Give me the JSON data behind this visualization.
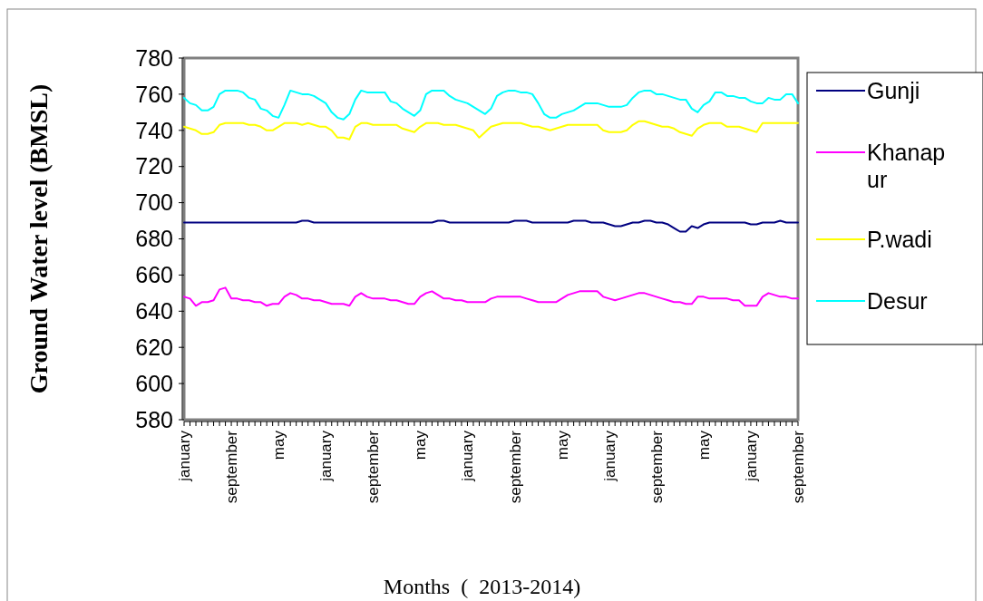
{
  "chart_data": {
    "type": "line",
    "xlabel": "Months  (  2013-2014)",
    "ylabel": "Ground Water level (BMSL)",
    "categories": [
      "january",
      null,
      null,
      null,
      null,
      null,
      null,
      null,
      "september",
      null,
      null,
      null,
      null,
      null,
      null,
      null,
      "may",
      null,
      null,
      null,
      null,
      null,
      null,
      null,
      "january",
      null,
      null,
      null,
      null,
      null,
      null,
      null,
      "september",
      null,
      null,
      null,
      null,
      null,
      null,
      null,
      "may",
      null,
      null,
      null,
      null,
      null,
      null,
      null,
      "january",
      null,
      null,
      null,
      null,
      null,
      null,
      null,
      "september",
      null,
      null,
      null,
      null,
      null,
      null,
      null,
      "may",
      null,
      null,
      null,
      null,
      null,
      null,
      null,
      "january",
      null,
      null,
      null,
      null,
      null,
      null,
      null,
      "september",
      null,
      null,
      null,
      null,
      null,
      null,
      null,
      "may",
      null,
      null,
      null,
      null,
      null,
      null,
      null,
      "january",
      null,
      null,
      null,
      null,
      null,
      null,
      null,
      "september"
    ],
    "series": [
      {
        "name": "Gunji",
        "color": "#000080",
        "values": [
          689,
          689,
          689,
          689,
          689,
          689,
          689,
          689,
          689,
          689,
          689,
          689,
          689,
          689,
          689,
          689,
          689,
          689,
          689,
          689,
          690,
          690,
          689,
          689,
          689,
          689,
          689,
          689,
          689,
          689,
          689,
          689,
          689,
          689,
          689,
          689,
          689,
          689,
          689,
          689,
          689,
          689,
          689,
          690,
          690,
          689,
          689,
          689,
          689,
          689,
          689,
          689,
          689,
          689,
          689,
          689,
          690,
          690,
          690,
          689,
          689,
          689,
          689,
          689,
          689,
          689,
          690,
          690,
          690,
          689,
          689,
          689,
          688,
          687,
          687,
          688,
          689,
          689,
          690,
          690,
          689,
          689,
          688,
          686,
          684,
          684,
          687,
          686,
          688,
          689,
          689,
          689,
          689,
          689,
          689,
          689,
          688,
          688,
          689,
          689,
          689,
          690,
          689,
          689,
          689
        ]
      },
      {
        "name": "Khanapur",
        "color": "#ff00ff",
        "values": [
          648,
          647,
          643,
          645,
          645,
          646,
          652,
          653,
          647,
          647,
          646,
          646,
          645,
          645,
          643,
          644,
          644,
          648,
          650,
          649,
          647,
          647,
          646,
          646,
          645,
          644,
          644,
          644,
          643,
          648,
          650,
          648,
          647,
          647,
          647,
          646,
          646,
          645,
          644,
          644,
          648,
          650,
          651,
          649,
          647,
          647,
          646,
          646,
          645,
          645,
          645,
          645,
          647,
          648,
          648,
          648,
          648,
          648,
          647,
          646,
          645,
          645,
          645,
          645,
          647,
          649,
          650,
          651,
          651,
          651,
          651,
          648,
          647,
          646,
          647,
          648,
          649,
          650,
          650,
          649,
          648,
          647,
          646,
          645,
          645,
          644,
          644,
          648,
          648,
          647,
          647,
          647,
          647,
          646,
          646,
          643,
          643,
          643,
          648,
          650,
          649,
          648,
          648,
          647,
          647
        ]
      },
      {
        "name": "P.wadi",
        "color": "#ffff00",
        "values": [
          742,
          741,
          740,
          738,
          738,
          739,
          743,
          744,
          744,
          744,
          744,
          743,
          743,
          742,
          740,
          740,
          742,
          744,
          744,
          744,
          743,
          744,
          743,
          742,
          742,
          740,
          736,
          736,
          735,
          742,
          744,
          744,
          743,
          743,
          743,
          743,
          743,
          741,
          740,
          739,
          742,
          744,
          744,
          744,
          743,
          743,
          743,
          742,
          741,
          740,
          736,
          739,
          742,
          743,
          744,
          744,
          744,
          744,
          743,
          742,
          742,
          741,
          740,
          741,
          742,
          743,
          743,
          743,
          743,
          743,
          743,
          740,
          739,
          739,
          739,
          740,
          743,
          745,
          745,
          744,
          743,
          742,
          742,
          741,
          739,
          738,
          737,
          741,
          743,
          744,
          744,
          744,
          742,
          742,
          742,
          741,
          740,
          739,
          744,
          744,
          744,
          744,
          744,
          744,
          744
        ]
      },
      {
        "name": "Desur",
        "color": "#00ffff",
        "values": [
          758,
          755,
          754,
          751,
          751,
          753,
          760,
          762,
          762,
          762,
          761,
          758,
          757,
          752,
          751,
          748,
          747,
          754,
          762,
          761,
          760,
          760,
          759,
          757,
          755,
          750,
          747,
          746,
          749,
          757,
          762,
          761,
          761,
          761,
          761,
          756,
          755,
          752,
          750,
          748,
          751,
          760,
          762,
          762,
          762,
          759,
          757,
          756,
          755,
          753,
          751,
          749,
          752,
          759,
          761,
          762,
          762,
          761,
          761,
          760,
          755,
          749,
          747,
          747,
          749,
          750,
          751,
          753,
          755,
          755,
          755,
          754,
          753,
          753,
          753,
          754,
          758,
          761,
          762,
          762,
          760,
          760,
          759,
          758,
          757,
          757,
          752,
          750,
          754,
          756,
          761,
          761,
          759,
          759,
          758,
          758,
          756,
          755,
          755,
          758,
          757,
          757,
          760,
          760,
          755
        ]
      }
    ],
    "ylim": [
      580,
      780
    ],
    "yticks": [
      580,
      600,
      620,
      640,
      660,
      680,
      700,
      720,
      740,
      760,
      780
    ],
    "grid": false,
    "legend": "right",
    "marker": "none",
    "line_style": "solid"
  }
}
